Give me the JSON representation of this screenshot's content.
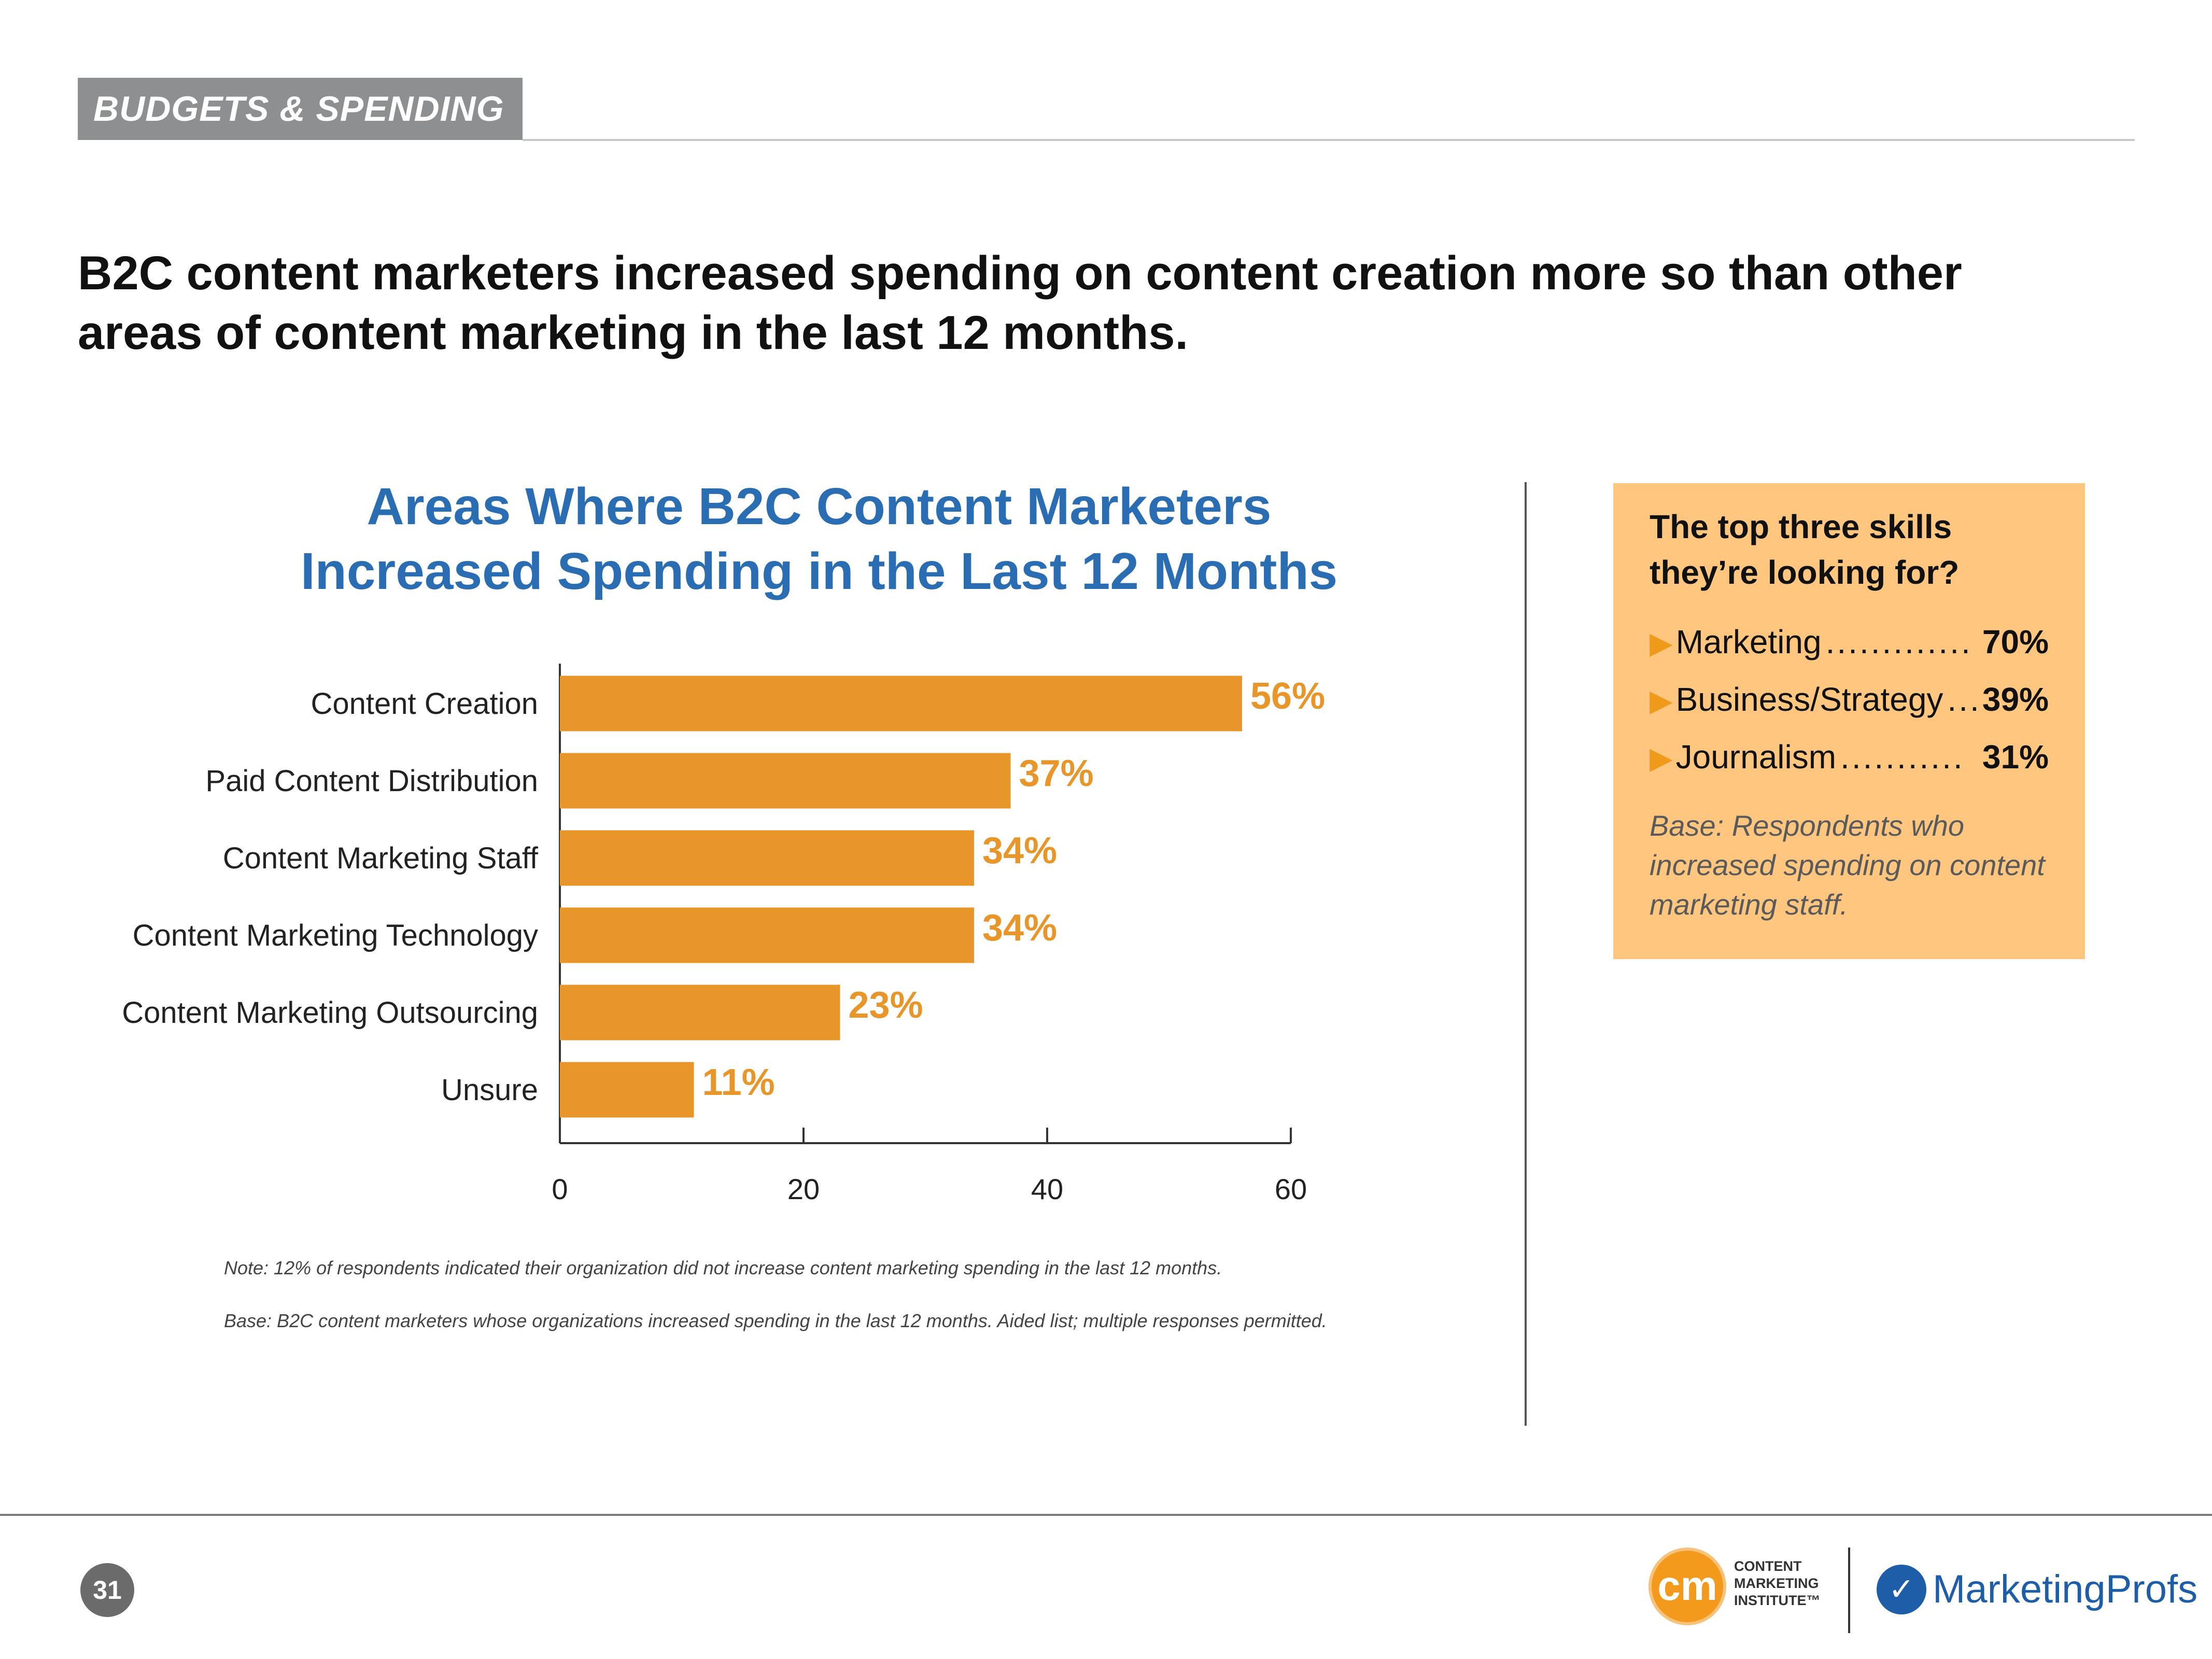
{
  "section": {
    "tag": "BUDGETS & SPENDING"
  },
  "headline": "B2C content marketers increased spending on content creation more so than other areas of content marketing in the last 12 months.",
  "chart_data": {
    "type": "bar",
    "orientation": "horizontal",
    "title": "Areas Where B2C Content Marketers Increased Spending in the Last 12 Months",
    "title_lines": [
      "Areas Where B2C Content Marketers",
      "Increased Spending in the Last 12 Months"
    ],
    "categories": [
      "Content Creation",
      "Paid Content Distribution",
      "Content Marketing Staff",
      "Content Marketing Technology",
      "Content Marketing Outsourcing",
      "Unsure"
    ],
    "values": [
      56,
      37,
      34,
      34,
      23,
      11
    ],
    "value_labels": [
      "56%",
      "37%",
      "34%",
      "34%",
      "23%",
      "11%"
    ],
    "xlim": [
      0,
      60
    ],
    "xticks": [
      0,
      20,
      40,
      60
    ],
    "xlabel": "",
    "ylabel": "",
    "bar_color": "#e8952a",
    "label_color": "#e8952a",
    "grid": false
  },
  "notes": {
    "note": "Note: 12% of respondents indicated their organization did not increase content marketing spending in the last 12 months.",
    "base": "Base: B2C content marketers whose organizations increased spending in the last 12 months. Aided list; multiple responses permitted."
  },
  "sidebar": {
    "title_line1": "The top three skills",
    "title_line2": "they’re looking for?",
    "skills": [
      {
        "label": "Marketing",
        "dots": ".............",
        "pct": "70%"
      },
      {
        "label": "Business/Strategy",
        "dots": "....",
        "pct": "39%"
      },
      {
        "label": "Journalism",
        "dots": "...........",
        "pct": "31%"
      }
    ],
    "arrow_glyph": "▶",
    "base": "Base: Respondents who increased spending on content marketing staff.",
    "background": "#fec67f"
  },
  "footer": {
    "page_number": "31",
    "cmi_logo": {
      "monogram": "cm",
      "text": "CONTENT\nMARKETING\nINSTITUTE™"
    },
    "mp_logo": {
      "text": "MarketingProfs"
    }
  },
  "colors": {
    "title_blue": "#2a6db3",
    "accent_orange": "#e8952a",
    "tag_gray": "#8e8f91"
  }
}
